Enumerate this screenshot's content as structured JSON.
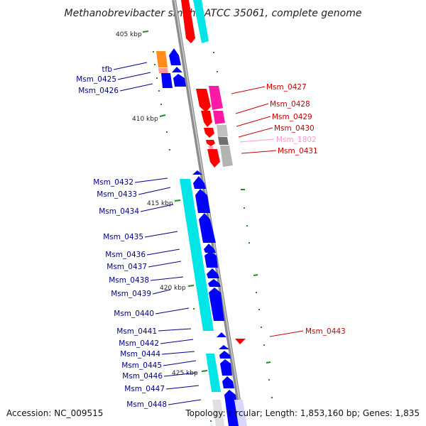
{
  "title": "Methanobrevibacter smithii ATCC 35061, complete genome",
  "accession": "Accession: NC_009515",
  "topology": "Topology: circular; Length: 1,853,160 bp; Genes: 1,835",
  "kbp_labels": [
    "405 kbp",
    "410 kbp",
    "415 kbp",
    "420 kbp",
    "425 kbp"
  ],
  "colors": {
    "forward_cds": "#ff0000",
    "reverse_cds": "#0000ff",
    "forward_label": "#cc0000",
    "reverse_label": "#00008b",
    "pink_feature": "#ff1aa6",
    "pseudo_label": "#ff99cc",
    "cyan_feature": "#00e5e5",
    "orange_feature": "#ff8c1a",
    "grey_feature": "#b3b3b3",
    "tick_green": "#228b22",
    "backbone": "#8c8c8c"
  },
  "genes_forward": [
    "Msm_0427",
    "Msm_0428",
    "Msm_0429",
    "Msm_0430",
    "Msm_1802",
    "Msm_0431",
    "Msm_0443"
  ],
  "genes_reverse": [
    "tfb",
    "Msm_0425",
    "Msm_0426",
    "Msm_0432",
    "Msm_0433",
    "Msm_0434",
    "Msm_0435",
    "Msm_0436",
    "Msm_0437",
    "Msm_0438",
    "Msm_0439",
    "Msm_0440",
    "Msm_0441",
    "Msm_0442",
    "Msm_0444",
    "Msm_0445",
    "Msm_0446",
    "Msm_0447",
    "Msm_0448"
  ]
}
